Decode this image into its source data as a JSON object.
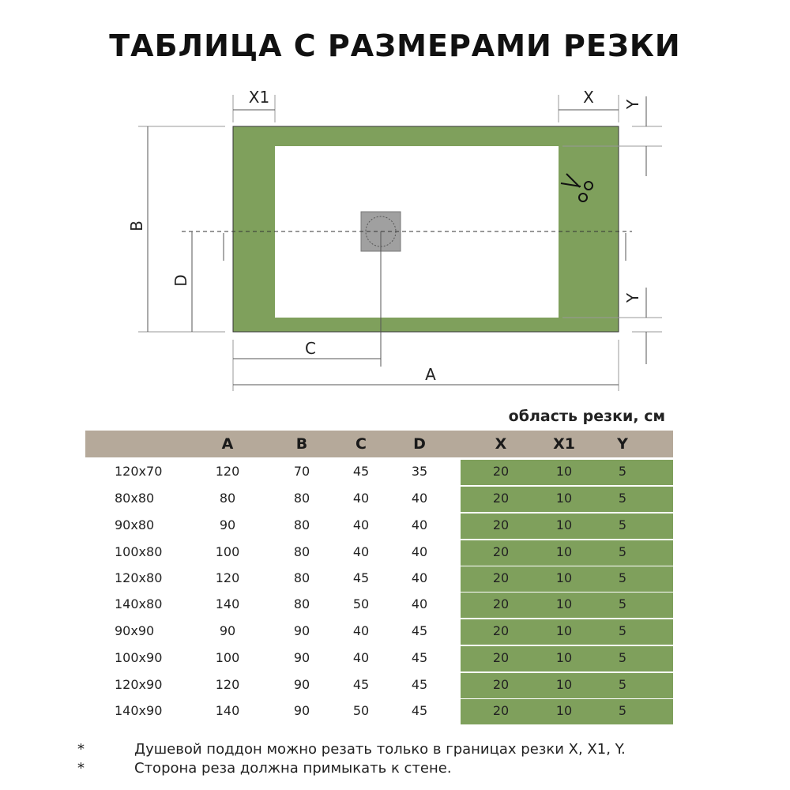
{
  "title": "ТАБЛИЦА С РАЗМЕРАМИ РЕЗКИ",
  "diagram": {
    "labels": {
      "x1": "X1",
      "x": "X",
      "y_top": "Y",
      "y_bottom": "Y",
      "b": "B",
      "d": "D",
      "c": "C",
      "a": "A"
    },
    "colors": {
      "cut_area": "#7fa05c",
      "drain": "#a0a0a0"
    },
    "icons": [
      "scissors-icon",
      "drain-icon"
    ]
  },
  "table": {
    "caption": "область резки, см",
    "headers": [
      "",
      "A",
      "B",
      "C",
      "D",
      "X",
      "X1",
      "Y"
    ],
    "rows": [
      [
        "120x70",
        "120",
        "70",
        "45",
        "35",
        "20",
        "10",
        "5"
      ],
      [
        "80x80",
        "80",
        "80",
        "40",
        "40",
        "20",
        "10",
        "5"
      ],
      [
        "90x80",
        "90",
        "80",
        "40",
        "40",
        "20",
        "10",
        "5"
      ],
      [
        "100x80",
        "100",
        "80",
        "40",
        "40",
        "20",
        "10",
        "5"
      ],
      [
        "120x80",
        "120",
        "80",
        "45",
        "40",
        "20",
        "10",
        "5"
      ],
      [
        "140x80",
        "140",
        "80",
        "50",
        "40",
        "20",
        "10",
        "5"
      ],
      [
        "90x90",
        "90",
        "90",
        "40",
        "45",
        "20",
        "10",
        "5"
      ],
      [
        "100x90",
        "100",
        "90",
        "40",
        "45",
        "20",
        "10",
        "5"
      ],
      [
        "120x90",
        "120",
        "90",
        "45",
        "45",
        "20",
        "10",
        "5"
      ],
      [
        "140x90",
        "140",
        "90",
        "50",
        "45",
        "20",
        "10",
        "5"
      ]
    ],
    "colors": {
      "header": "#b5a99a",
      "cut_columns": "#7fa05c"
    }
  },
  "notes": [
    {
      "marker": "*",
      "text": "Душевой поддон можно резать только в границах резки X, X1, Y."
    },
    {
      "marker": "*",
      "text": "Сторона реза должна примыкать к стене."
    }
  ]
}
